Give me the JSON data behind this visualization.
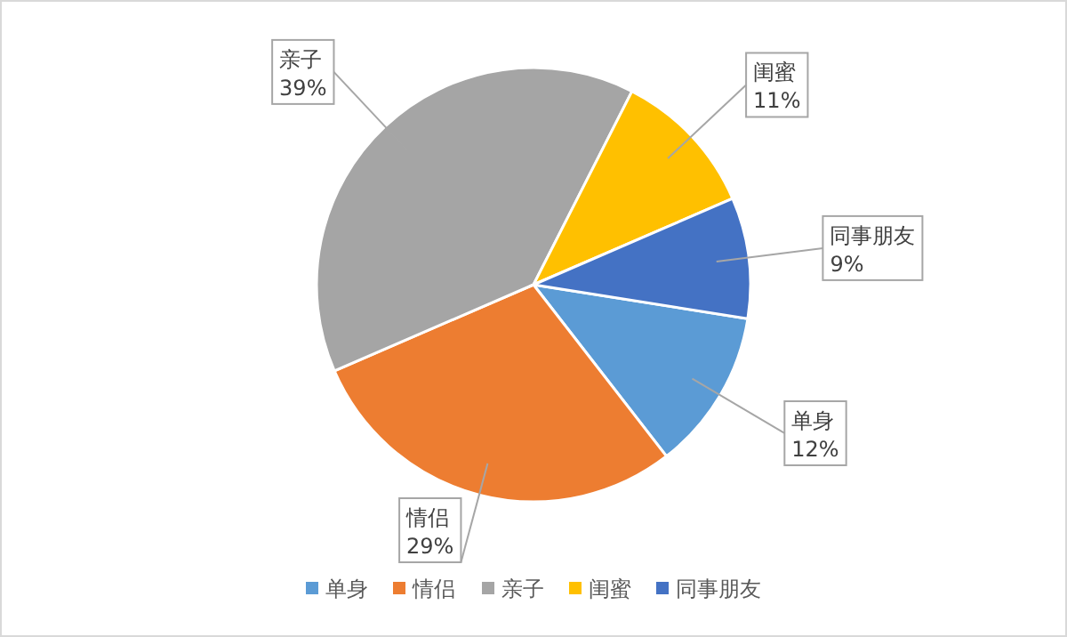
{
  "chart_data": {
    "type": "pie",
    "categories": [
      "单身",
      "情侣",
      "亲子",
      "闺蜜",
      "同事朋友"
    ],
    "values": [
      12,
      29,
      39,
      11,
      9
    ],
    "colors": [
      "#5b9bd5",
      "#ed7d31",
      "#a5a5a5",
      "#ffc000",
      "#4472c4"
    ],
    "value_labels": [
      "12%",
      "29%",
      "39%",
      "11%",
      "9%"
    ],
    "legend": "bottom"
  }
}
